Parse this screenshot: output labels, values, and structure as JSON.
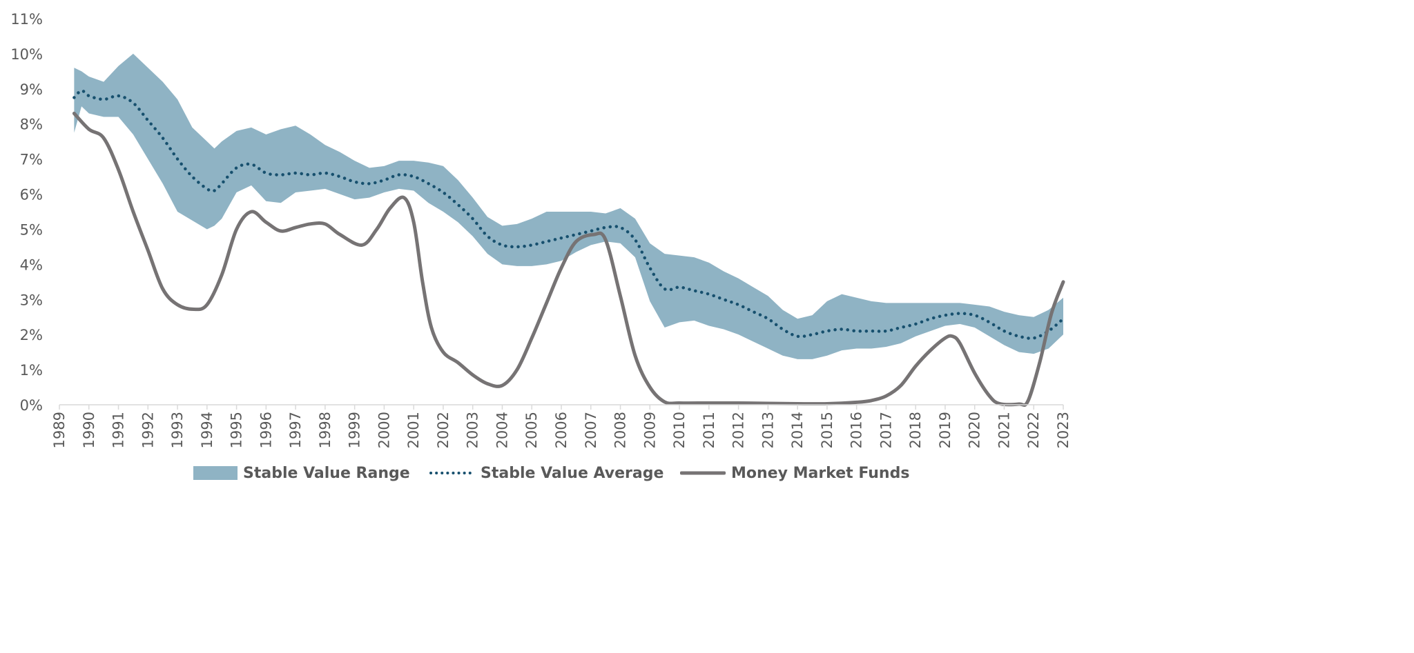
{
  "chart_data": {
    "type": "line",
    "title": "",
    "xlabel": "",
    "ylabel": "",
    "ylim": [
      0,
      11
    ],
    "y_ticks": [
      "0%",
      "1%",
      "2%",
      "3%",
      "4%",
      "5%",
      "6%",
      "7%",
      "8%",
      "9%",
      "10%",
      "11%"
    ],
    "x_ticks": [
      "1989",
      "1990",
      "1991",
      "1992",
      "1993",
      "1994",
      "1995",
      "1996",
      "1997",
      "1998",
      "1999",
      "2000",
      "2001",
      "2002",
      "2003",
      "2004",
      "2005",
      "2006",
      "2007",
      "2008",
      "2009",
      "2010",
      "2011",
      "2012",
      "2013",
      "2014",
      "2015",
      "2016",
      "2017",
      "2018",
      "2019",
      "2020",
      "2021",
      "2022",
      "2023"
    ],
    "xlim": [
      1989,
      2023
    ],
    "grid": false,
    "legend_position": "bottom",
    "colors": {
      "range": "#8fb3c4",
      "average": "#17506e",
      "money_market": "#767374",
      "text": "#595959"
    },
    "series": [
      {
        "name": "Stable Value Range",
        "style": "band",
        "x": [
          1989.5,
          1989.75,
          1990,
          1990.5,
          1991,
          1991.5,
          1992,
          1992.5,
          1993,
          1993.5,
          1994,
          1994.25,
          1994.5,
          1995,
          1995.5,
          1996,
          1996.5,
          1997,
          1997.5,
          1998,
          1998.5,
          1999,
          1999.5,
          2000,
          2000.5,
          2001,
          2001.5,
          2002,
          2002.5,
          2003,
          2003.5,
          2004,
          2004.5,
          2005,
          2005.5,
          2006,
          2006.5,
          2007,
          2007.5,
          2008,
          2008.5,
          2009,
          2009.5,
          2010,
          2010.5,
          2011,
          2011.5,
          2012,
          2012.5,
          2013,
          2013.5,
          2014,
          2014.5,
          2015,
          2015.5,
          2016,
          2016.5,
          2017,
          2017.5,
          2018,
          2018.5,
          2019,
          2019.5,
          2020,
          2020.5,
          2021,
          2021.5,
          2022,
          2022.5,
          2023
        ],
        "upper": [
          9.6,
          9.5,
          9.35,
          9.2,
          9.65,
          10.0,
          9.6,
          9.2,
          8.7,
          7.9,
          7.5,
          7.3,
          7.5,
          7.8,
          7.9,
          7.7,
          7.85,
          7.95,
          7.7,
          7.4,
          7.2,
          6.95,
          6.75,
          6.8,
          6.95,
          6.95,
          6.9,
          6.8,
          6.4,
          5.9,
          5.35,
          5.1,
          5.15,
          5.3,
          5.5,
          5.5,
          5.5,
          5.5,
          5.45,
          5.6,
          5.3,
          4.6,
          4.3,
          4.25,
          4.2,
          4.05,
          3.8,
          3.6,
          3.35,
          3.1,
          2.7,
          2.45,
          2.55,
          2.95,
          3.15,
          3.05,
          2.95,
          2.9,
          2.9,
          2.9,
          2.9,
          2.9,
          2.9,
          2.85,
          2.8,
          2.65,
          2.55,
          2.5,
          2.7,
          3.05
        ],
        "lower": [
          7.75,
          8.5,
          8.3,
          8.2,
          8.2,
          7.7,
          7.0,
          6.3,
          5.5,
          5.25,
          5.0,
          5.1,
          5.3,
          6.05,
          6.25,
          5.8,
          5.75,
          6.05,
          6.1,
          6.15,
          6.0,
          5.85,
          5.9,
          6.05,
          6.15,
          6.1,
          5.75,
          5.5,
          5.2,
          4.8,
          4.3,
          4.0,
          3.95,
          3.95,
          4.0,
          4.1,
          4.35,
          4.55,
          4.65,
          4.6,
          4.2,
          2.95,
          2.2,
          2.35,
          2.4,
          2.25,
          2.15,
          2.0,
          1.8,
          1.6,
          1.4,
          1.3,
          1.3,
          1.4,
          1.55,
          1.6,
          1.6,
          1.65,
          1.75,
          1.95,
          2.1,
          2.25,
          2.3,
          2.2,
          1.95,
          1.7,
          1.5,
          1.45,
          1.6,
          2.0
        ]
      },
      {
        "name": "Stable Value Average",
        "style": "dotted",
        "x": [
          1989.5,
          1989.75,
          1990,
          1990.5,
          1991,
          1991.5,
          1992,
          1992.5,
          1993,
          1993.5,
          1994,
          1994.25,
          1994.5,
          1995,
          1995.5,
          1996,
          1996.5,
          1997,
          1997.5,
          1998,
          1998.5,
          1999,
          1999.5,
          2000,
          2000.5,
          2001,
          2001.5,
          2002,
          2002.5,
          2003,
          2003.5,
          2004,
          2004.5,
          2005,
          2005.5,
          2006,
          2006.5,
          2007,
          2007.5,
          2008,
          2008.5,
          2009,
          2009.5,
          2010,
          2010.5,
          2011,
          2011.5,
          2012,
          2012.5,
          2013,
          2013.5,
          2014,
          2014.5,
          2015,
          2015.5,
          2016,
          2016.5,
          2017,
          2017.5,
          2018,
          2018.5,
          2019,
          2019.5,
          2020,
          2020.5,
          2021,
          2021.5,
          2022,
          2022.5,
          2023
        ],
        "values": [
          8.75,
          8.95,
          8.8,
          8.7,
          8.8,
          8.6,
          8.1,
          7.6,
          7.0,
          6.5,
          6.15,
          6.1,
          6.3,
          6.75,
          6.85,
          6.6,
          6.55,
          6.6,
          6.55,
          6.6,
          6.5,
          6.35,
          6.3,
          6.4,
          6.55,
          6.5,
          6.3,
          6.05,
          5.7,
          5.3,
          4.8,
          4.55,
          4.5,
          4.55,
          4.65,
          4.75,
          4.85,
          4.95,
          5.05,
          5.05,
          4.7,
          3.9,
          3.3,
          3.35,
          3.25,
          3.15,
          3.0,
          2.85,
          2.65,
          2.45,
          2.15,
          1.95,
          2.0,
          2.1,
          2.15,
          2.1,
          2.1,
          2.1,
          2.2,
          2.3,
          2.45,
          2.55,
          2.6,
          2.55,
          2.35,
          2.1,
          1.95,
          1.9,
          2.1,
          2.45
        ]
      },
      {
        "name": "Money Market Funds",
        "style": "solid",
        "x": [
          1989.5,
          1990,
          1990.5,
          1991,
          1991.5,
          1992,
          1992.5,
          1993,
          1993.55,
          1994,
          1994.5,
          1995,
          1995.5,
          1996,
          1996.5,
          1997,
          1997.5,
          1998,
          1998.5,
          1999.25,
          1999.75,
          2000.2,
          2000.67,
          2001,
          2001.3,
          2001.6,
          2002,
          2002.5,
          2003,
          2003.5,
          2004,
          2004.5,
          2005,
          2005.5,
          2006,
          2006.5,
          2007.1,
          2007.5,
          2008,
          2008.5,
          2009,
          2009.5,
          2010,
          2011,
          2012,
          2013,
          2014,
          2015,
          2016,
          2016.5,
          2017,
          2017.5,
          2018,
          2018.5,
          2019,
          2019.25,
          2019.5,
          2020,
          2020.5,
          2020.85,
          2021.5,
          2021.8,
          2022.2,
          2022.6,
          2023
        ],
        "values": [
          8.3,
          7.85,
          7.6,
          6.7,
          5.5,
          4.4,
          3.3,
          2.85,
          2.72,
          2.85,
          3.7,
          5.0,
          5.5,
          5.2,
          4.95,
          5.05,
          5.15,
          5.15,
          4.85,
          4.55,
          5.0,
          5.6,
          5.9,
          5.2,
          3.5,
          2.2,
          1.5,
          1.2,
          0.85,
          0.6,
          0.55,
          1.0,
          1.9,
          2.9,
          3.9,
          4.65,
          4.85,
          4.7,
          3.1,
          1.4,
          0.5,
          0.08,
          0.05,
          0.05,
          0.05,
          0.04,
          0.03,
          0.03,
          0.07,
          0.12,
          0.25,
          0.55,
          1.1,
          1.55,
          1.9,
          1.95,
          1.75,
          0.9,
          0.25,
          0.03,
          0.02,
          0.1,
          1.2,
          2.6,
          3.5
        ]
      }
    ]
  },
  "legend": {
    "range_label": "Stable Value Range",
    "average_label": "Stable Value Average",
    "money_market_label": "Money Market Funds"
  }
}
